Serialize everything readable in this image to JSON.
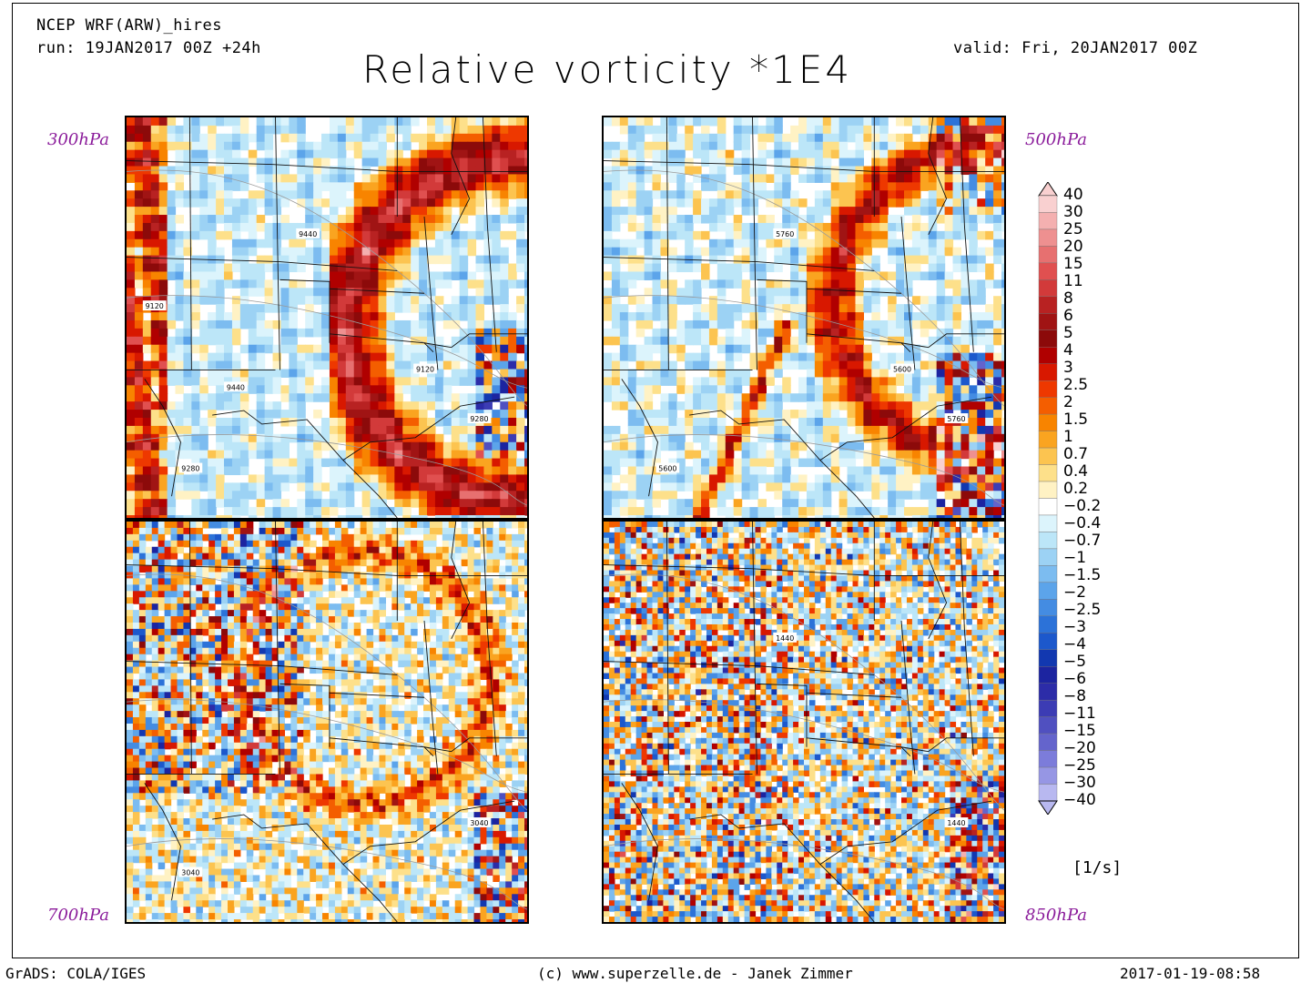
{
  "header": {
    "model": "NCEP WRF(ARW)_hires",
    "run": "run: 19JAN2017 00Z +24h",
    "valid": "valid: Fri, 20JAN2017 00Z",
    "title": "Relative vorticity *1E4"
  },
  "panels": [
    {
      "level": "300hPa",
      "contour_labels": [
        "9120",
        "9120",
        "9280",
        "9280",
        "9440",
        "9440"
      ],
      "style": "upper"
    },
    {
      "level": "500hPa",
      "contour_labels": [
        "5600",
        "5600",
        "5760",
        "5760"
      ],
      "style": "mid"
    },
    {
      "level": "700hPa",
      "contour_labels": [
        "3040",
        "3040"
      ],
      "style": "low"
    },
    {
      "level": "850hPa",
      "contour_labels": [
        "1440",
        "1440"
      ],
      "style": "sfc"
    }
  ],
  "colorbar": {
    "unit": "[1/s]",
    "labels": [
      "40",
      "30",
      "25",
      "20",
      "15",
      "11",
      "8",
      "6",
      "5",
      "4",
      "3",
      "2.5",
      "2",
      "1.5",
      "1",
      "0.7",
      "0.4",
      "0.2",
      "-0.2",
      "-0.4",
      "-0.7",
      "-1",
      "-1.5",
      "-2",
      "-2.5",
      "-3",
      "-4",
      "-5",
      "-6",
      "-8",
      "-11",
      "-15",
      "-20",
      "-25",
      "-30",
      "-40"
    ],
    "colors": [
      "#f9d0d0",
      "#f4b0b0",
      "#ee9090",
      "#e77070",
      "#e05050",
      "#d23a3a",
      "#b82222",
      "#a01414",
      "#8c0a0a",
      "#b00000",
      "#d81800",
      "#ee3800",
      "#f45e00",
      "#f88400",
      "#faa420",
      "#fcc450",
      "#fde08a",
      "#fff2c4",
      "#ffffff",
      "#dcf4fc",
      "#bce6f8",
      "#9cd2f4",
      "#7cbcf0",
      "#5ca4ea",
      "#448ce2",
      "#2c72d8",
      "#1c58cc",
      "#1238b0",
      "#1c24a0",
      "#2c2ca8",
      "#3c3cb4",
      "#5050c0",
      "#6464cc",
      "#7c7cda",
      "#9696e4",
      "#b8b8f0"
    ]
  },
  "footer": {
    "left": "GrADS: COLA/IGES",
    "center": "(c) www.superzelle.de - Janek Zimmer",
    "right": "2017-01-19-08:58"
  }
}
